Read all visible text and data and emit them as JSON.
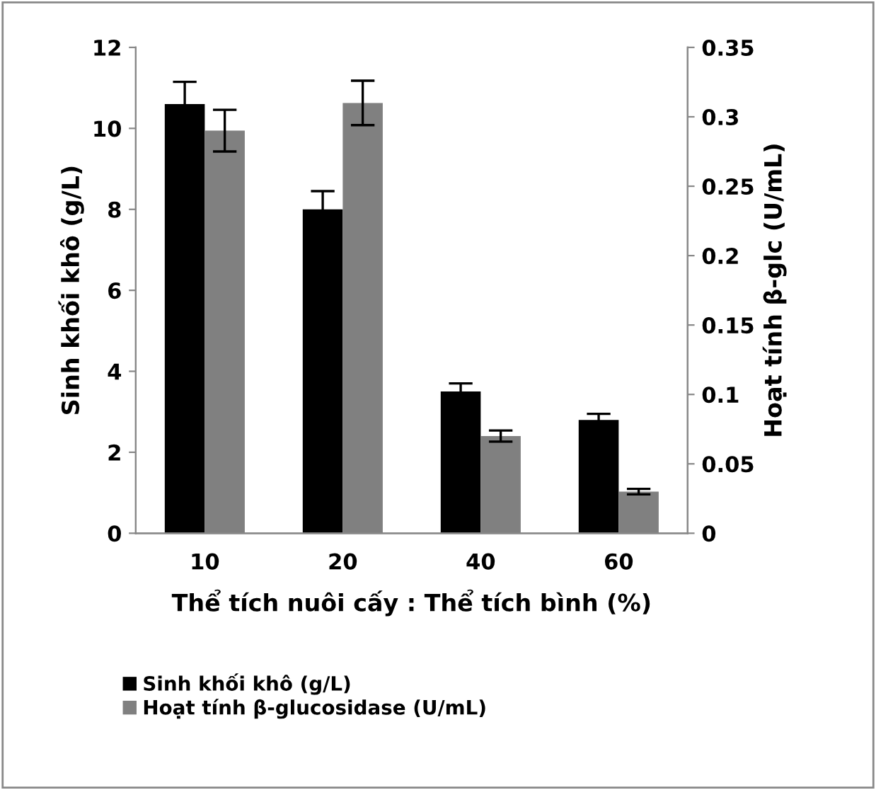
{
  "chart_data": {
    "type": "bar",
    "xlabel": "Thể tích nuôi cấy : Thể tích bình (%)",
    "ylabel": "Sinh khối khô (g/L)",
    "y2label": "Hoạt tính β-glc (U/mL)",
    "categories": [
      "10",
      "20",
      "40",
      "60"
    ],
    "series": [
      {
        "name": "Sinh khối khô (g/L)",
        "color": "#000000",
        "values": [
          10.6,
          8.0,
          3.5,
          2.8
        ],
        "errors": [
          0.55,
          0.45,
          0.2,
          0.15
        ]
      },
      {
        "name": "Hoạt tính β-glucosidase (U/mL)",
        "color": "#808080",
        "axis": "y2",
        "values": [
          0.29,
          0.31,
          0.07,
          0.03
        ],
        "errors": [
          0.015,
          0.016,
          0.004,
          0.002
        ]
      }
    ],
    "ylim": [
      0,
      12
    ],
    "yticks": [
      0,
      2,
      4,
      6,
      8,
      10,
      12
    ],
    "y2lim": [
      0,
      0.35
    ],
    "y2ticks": [
      0,
      0.05,
      0.1,
      0.15,
      0.2,
      0.25,
      0.3,
      0.35
    ],
    "grid": false,
    "legend": "bottom"
  }
}
